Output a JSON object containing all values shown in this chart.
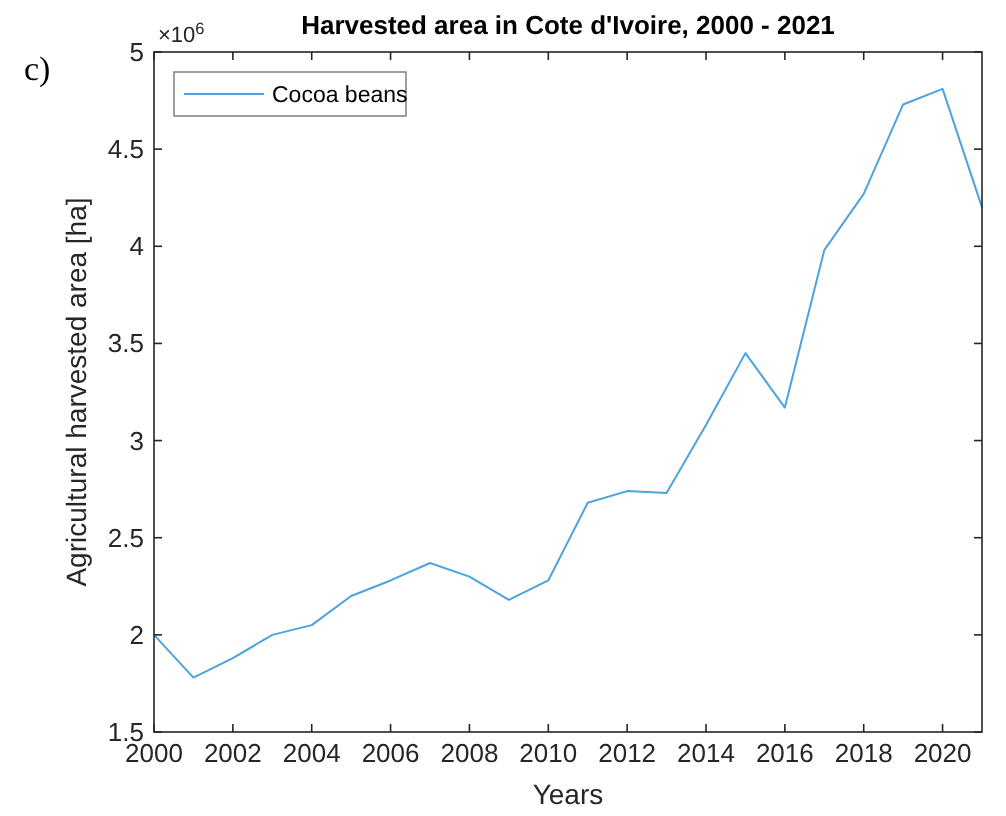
{
  "chart_data": {
    "type": "line",
    "title": "Harvested area in Cote d'Ivoire, 2000 - 2021",
    "xlabel": "Years",
    "ylabel": "Agricultural harvested area [ha]",
    "annotations": [
      "c)",
      "×10$^{6}$"
    ],
    "x": [
      2000,
      2001,
      2002,
      2003,
      2004,
      2005,
      2006,
      2007,
      2008,
      2009,
      2010,
      2011,
      2012,
      2013,
      2014,
      2015,
      2016,
      2017,
      2018,
      2019,
      2020,
      2021
    ],
    "series": [
      {
        "name": "Cocoa beans",
        "color": "#4da3df",
        "values": [
          2.0,
          1.78,
          1.88,
          2.0,
          2.05,
          2.2,
          2.28,
          2.37,
          2.3,
          2.18,
          2.28,
          2.68,
          2.74,
          2.73,
          3.08,
          3.45,
          3.17,
          3.98,
          4.27,
          4.73,
          4.81,
          4.2
        ]
      }
    ],
    "xlim": [
      2000,
      2021
    ],
    "xticks": [
      2000,
      2002,
      2004,
      2006,
      2008,
      2010,
      2012,
      2014,
      2016,
      2018,
      2020
    ],
    "ylim": [
      1.5,
      5
    ],
    "yticks": [
      1.5,
      2,
      2.5,
      3,
      3.5,
      4,
      4.5,
      5
    ],
    "grid": false,
    "legend": "top left",
    "marker": "none",
    "line_style": "solid"
  }
}
